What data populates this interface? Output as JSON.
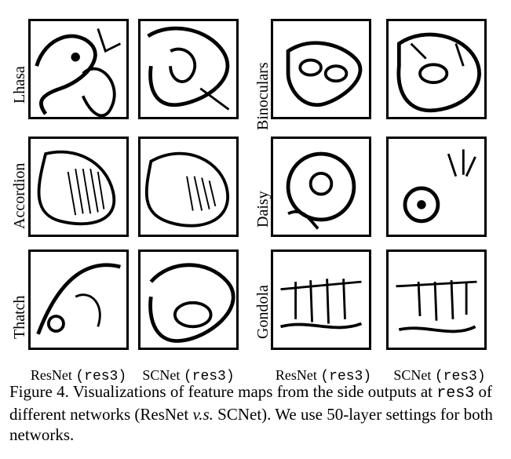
{
  "figure": {
    "rows_left": [
      "Lhasa",
      "Accordion",
      "Thatch"
    ],
    "rows_right": [
      "Binoculars",
      "Daisy",
      "Gondola"
    ],
    "columns": {
      "resnet": {
        "name": "ResNet",
        "code": "(res3)"
      },
      "scnet": {
        "name": "SCNet",
        "code": "(res3)"
      }
    }
  },
  "caption": {
    "label": "Figure 4.",
    "text_1": "Visualizations of feature maps from the side outputs at",
    "code": "res3",
    "text_2": "of different networks (ResNet",
    "vs": "v.s.",
    "text_3": "SCNet). We use 50-layer settings for both networks."
  }
}
